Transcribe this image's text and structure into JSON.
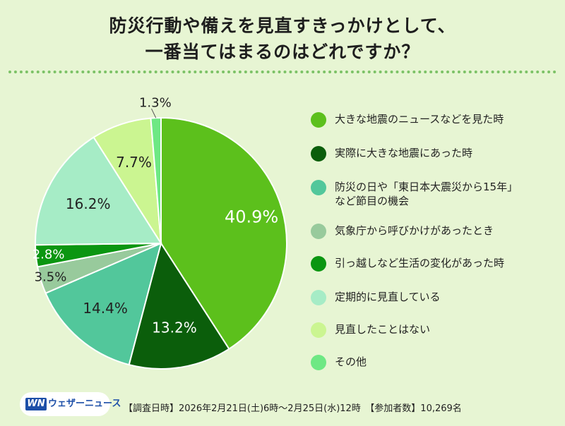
{
  "title_lines": [
    "防災行動や備えを見直すきっかけとして、",
    "一番当てはまるのはどれですか？"
  ],
  "chart_data": {
    "type": "pie",
    "title": "防災行動や備えを見直すきっかけとして、一番当てはまるのはどれですか？",
    "unit": "%",
    "slices": [
      {
        "label": "大きな地震のニュースなどを見た時",
        "value": 40.9,
        "value_label": "40.9%",
        "color": "#5cc01c"
      },
      {
        "label": "実際に大きな地震にあった時",
        "value": 13.2,
        "value_label": "13.2%",
        "color": "#0b5e0b"
      },
      {
        "label": "防災の日や「東日本大震災から15年」\nなど節目の機会",
        "value": 14.4,
        "value_label": "14.4%",
        "color": "#52c79b"
      },
      {
        "label": "気象庁から呼びかけがあったとき",
        "value": 3.5,
        "value_label": "3.5%",
        "color": "#98ca9c"
      },
      {
        "label": "引っ越しなど生活の変化があった時",
        "value": 2.8,
        "value_label": "2.8%",
        "color": "#0b9611"
      },
      {
        "label": "定期的に見直している",
        "value": 16.2,
        "value_label": "16.2%",
        "color": "#a6ecc6"
      },
      {
        "label": "見直したことはない",
        "value": 7.7,
        "value_label": "7.7%",
        "color": "#cbf591"
      },
      {
        "label": "その他",
        "value": 1.3,
        "value_label": "1.3%",
        "color": "#6ee884"
      }
    ],
    "legend": "right"
  },
  "logo_mark": "WN",
  "logo_text": "ウェザーニュース",
  "survey_info": "【調査日時】2026年2月21日(土)6時～2月25日(水)12時　【参加者数】10,269名"
}
